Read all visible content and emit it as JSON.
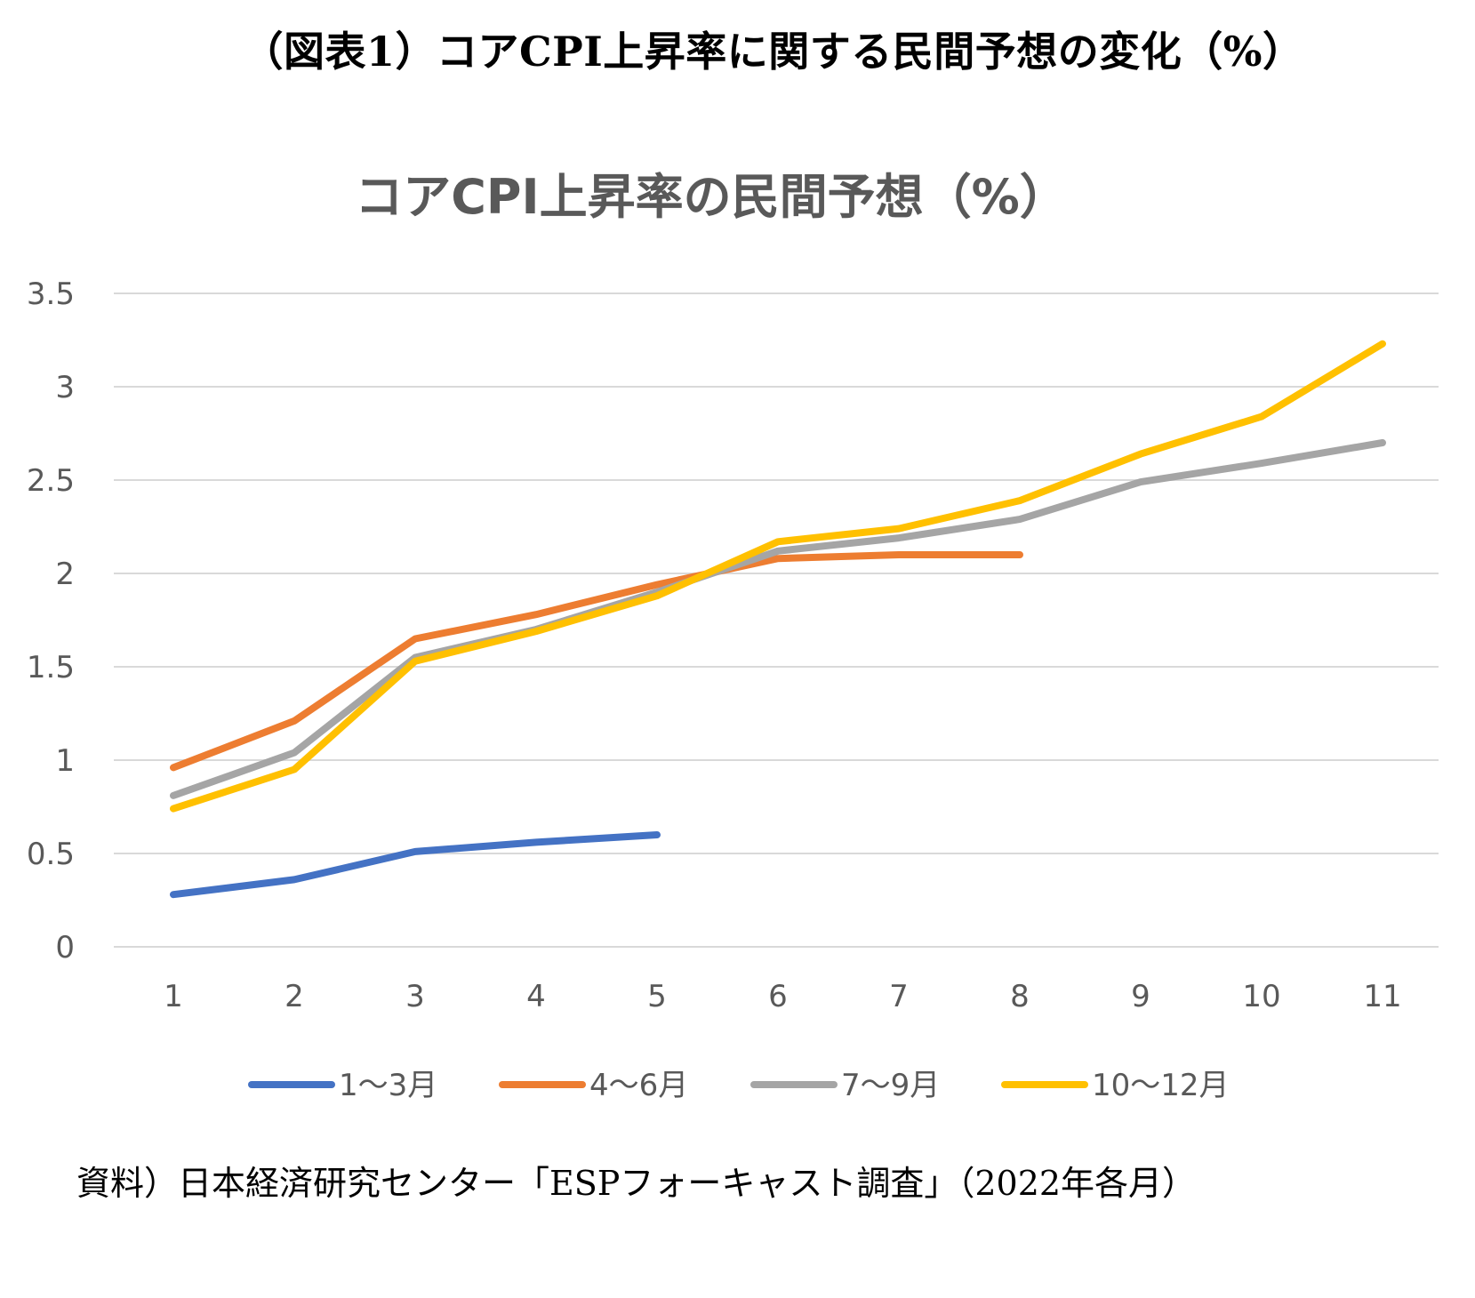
{
  "figure_title": "（図表1）コアCPI上昇率に関する民間予想の変化（%）",
  "source_note": "資料）日本経済研究センター「ESPフォーキャスト調査」（2022年各月）",
  "chart_data": {
    "type": "line",
    "title": "コアCPI上昇率の民間予想（%）",
    "xlabel": "",
    "ylabel": "",
    "x": [
      1,
      2,
      3,
      4,
      5,
      6,
      7,
      8,
      9,
      10,
      11
    ],
    "x_tick_labels": [
      "1",
      "2",
      "3",
      "4",
      "5",
      "6",
      "7",
      "8",
      "9",
      "10",
      "11"
    ],
    "ylim": [
      0,
      3.5
    ],
    "y_ticks": [
      0,
      0.5,
      1,
      1.5,
      2,
      2.5,
      3,
      3.5
    ],
    "y_tick_labels": [
      "0",
      "0.5",
      "1",
      "1.5",
      "2",
      "2.5",
      "3",
      "3.5"
    ],
    "grid": true,
    "legend_position": "bottom",
    "series": [
      {
        "name": "1～3月",
        "color": "#4472C4",
        "values": [
          0.28,
          0.36,
          0.51,
          0.56,
          0.6,
          null,
          null,
          null,
          null,
          null,
          null
        ]
      },
      {
        "name": "4～6月",
        "color": "#ED7D31",
        "values": [
          0.96,
          1.21,
          1.65,
          1.78,
          1.94,
          2.08,
          2.1,
          2.1,
          null,
          null,
          null
        ]
      },
      {
        "name": "7～9月",
        "color": "#A5A5A5",
        "values": [
          0.81,
          1.04,
          1.55,
          1.7,
          1.9,
          2.12,
          2.19,
          2.29,
          2.49,
          2.59,
          2.7
        ]
      },
      {
        "name": "10～12月",
        "color": "#FFC000",
        "values": [
          0.74,
          0.95,
          1.53,
          1.69,
          1.88,
          2.17,
          2.24,
          2.39,
          2.64,
          2.84,
          3.23
        ]
      }
    ]
  }
}
